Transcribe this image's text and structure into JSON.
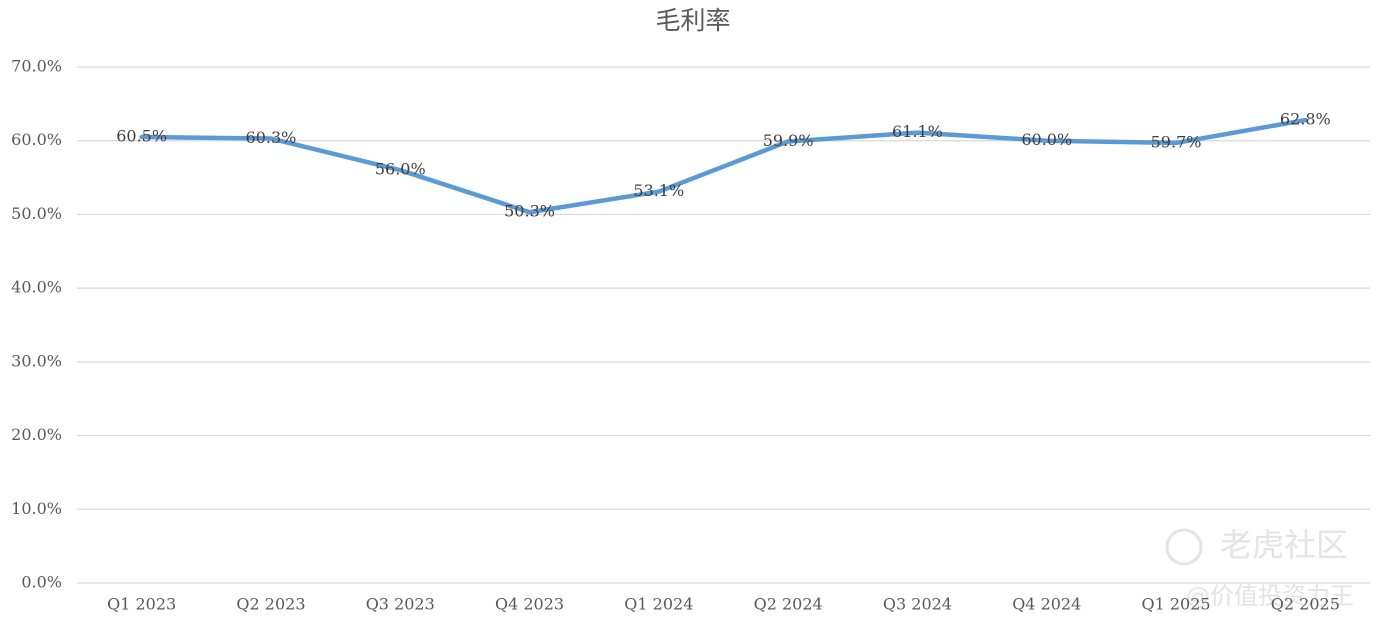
{
  "chart_data": {
    "type": "line",
    "title": "毛利率",
    "categories": [
      "Q1 2023",
      "Q2 2023",
      "Q3 2023",
      "Q4 2023",
      "Q1 2024",
      "Q2 2024",
      "Q3 2024",
      "Q4 2024",
      "Q1 2025",
      "Q2 2025"
    ],
    "series": [
      {
        "name": "毛利率",
        "color": "#5b9bd5",
        "values": [
          60.5,
          60.3,
          56.0,
          50.3,
          53.1,
          59.9,
          61.1,
          60.0,
          59.7,
          62.8
        ],
        "value_labels": [
          "60.5%",
          "60.3%",
          "56.0%",
          "50.3%",
          "53.1%",
          "59.9%",
          "61.1%",
          "60.0%",
          "59.7%",
          "62.8%"
        ]
      }
    ],
    "ylim": [
      0,
      70
    ],
    "yticks": [
      {
        "value": 0,
        "label": "0.0%"
      },
      {
        "value": 10,
        "label": "10.0%"
      },
      {
        "value": 20,
        "label": "20.0%"
      },
      {
        "value": 30,
        "label": "30.0%"
      },
      {
        "value": 40,
        "label": "40.0%"
      },
      {
        "value": 50,
        "label": "50.0%"
      },
      {
        "value": 60,
        "label": "60.0%"
      },
      {
        "value": 70,
        "label": "70.0%"
      }
    ],
    "grid": true,
    "watermark": {
      "brand": "老虎社区",
      "author": "@价值投资力王"
    }
  }
}
